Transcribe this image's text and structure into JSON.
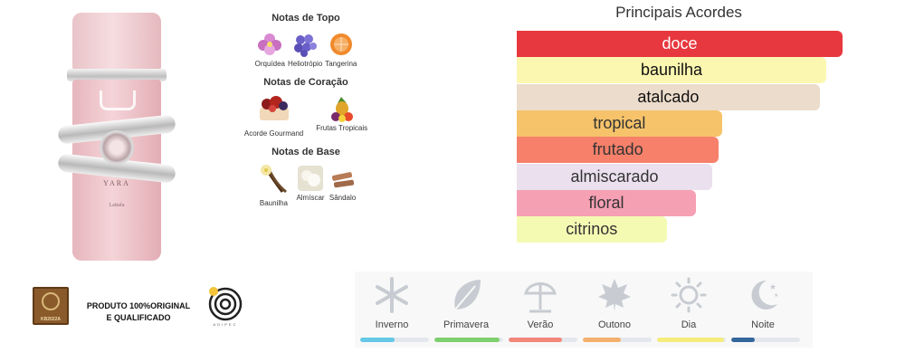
{
  "product": {
    "bottle_brand": "YARA",
    "bottle_maker": "Lattafa"
  },
  "notes": {
    "top": {
      "title": "Notas de Topo",
      "items": [
        {
          "label": "Orquídea",
          "icon": "orchid-icon",
          "color": "#c86fc0"
        },
        {
          "label": "Heliotrópio",
          "icon": "heliotrope-icon",
          "color": "#6a5fc8"
        },
        {
          "label": "Tangerina",
          "icon": "tangerine-icon",
          "color": "#f08a2c"
        }
      ]
    },
    "heart": {
      "title": "Notas de Coração",
      "items": [
        {
          "label": "Acorde Gourmand",
          "icon": "gourmand-cake-icon",
          "color": "#b3261e"
        },
        {
          "label": "Frutas Tropicais",
          "icon": "tropical-fruits-icon",
          "color": "#e0a52a"
        }
      ]
    },
    "base": {
      "title": "Notas de Base",
      "items": [
        {
          "label": "Baunilha",
          "icon": "vanilla-icon",
          "color": "#6b4a2a"
        },
        {
          "label": "Almíscar",
          "icon": "musk-icon",
          "color": "#e6e2d2"
        },
        {
          "label": "Sândalo",
          "icon": "sandalwood-icon",
          "color": "#b77b55"
        }
      ]
    }
  },
  "accords": {
    "title": "Principais Acordes",
    "items": [
      {
        "label": "doce",
        "value": 100,
        "color": "#e8383f",
        "text_color": "#ffffff"
      },
      {
        "label": "baunilha",
        "value": 95,
        "color": "#fcf7b0",
        "text_color": "#111111"
      },
      {
        "label": "atalcado",
        "value": 93,
        "color": "#ecdccb",
        "text_color": "#111111"
      },
      {
        "label": "tropical",
        "value": 63,
        "color": "#f6c36a",
        "text_color": "#333333"
      },
      {
        "label": "frutado",
        "value": 62,
        "color": "#f6806a",
        "text_color": "#333333"
      },
      {
        "label": "almiscarado",
        "value": 60,
        "color": "#ebe0ee",
        "text_color": "#333333"
      },
      {
        "label": "floral",
        "value": 55,
        "color": "#f6a0b4",
        "text_color": "#333333"
      },
      {
        "label": "citrinos",
        "value": 46,
        "color": "#f5fab3",
        "text_color": "#333333"
      }
    ]
  },
  "certification": {
    "seal_code": "KB2022A",
    "line1": "PRODUTO 100%ORIGINAL",
    "line2": "E QUALIFICADO",
    "logo_text": "ADIPEC"
  },
  "seasons": [
    {
      "label": "Inverno",
      "icon": "snowflake-icon",
      "level": 0.5,
      "color": "#64c8e6"
    },
    {
      "label": "Primavera",
      "icon": "leaf-icon",
      "level": 0.95,
      "color": "#7ed06e"
    },
    {
      "label": "Verão",
      "icon": "umbrella-icon",
      "level": 0.78,
      "color": "#f2877a"
    },
    {
      "label": "Outono",
      "icon": "maple-leaf-icon",
      "level": 0.55,
      "color": "#f4b06c"
    },
    {
      "label": "Dia",
      "icon": "sun-icon",
      "level": 0.98,
      "color": "#f5ec7c"
    },
    {
      "label": "Noite",
      "icon": "moon-icon",
      "level": 0.34,
      "color": "#34679b"
    }
  ]
}
